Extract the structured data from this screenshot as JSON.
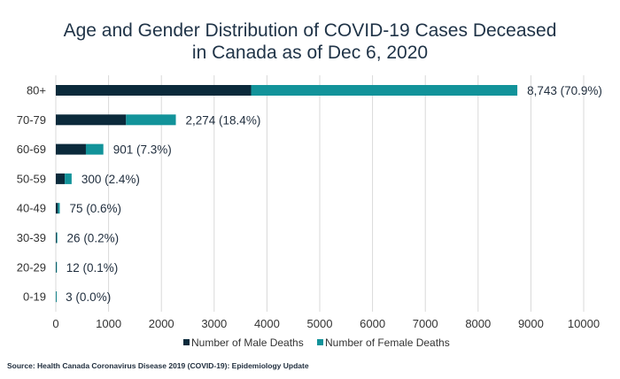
{
  "title_line1": "Age and Gender Distribution of COVID-19 Cases Deceased",
  "title_line2": "in Canada as of Dec 6, 2020",
  "source": "Source: Health Canada Coronavirus Disease 2019 (COVID-19): Epidemiology Update",
  "colors": {
    "male": "#0b2a3b",
    "female": "#12939a",
    "grid": "#d9d9d9"
  },
  "chart_data": {
    "type": "bar",
    "orientation": "horizontal",
    "stacked": true,
    "title": "Age and Gender Distribution of COVID-19 Cases Deceased in Canada as of Dec 6, 2020",
    "categories": [
      "80+",
      "70-79",
      "60-69",
      "50-59",
      "40-49",
      "30-39",
      "20-29",
      "0-19"
    ],
    "series": [
      {
        "name": "Number of Male Deaths",
        "values": [
          3700,
          1330,
          570,
          170,
          40,
          15,
          8,
          2
        ]
      },
      {
        "name": "Number of Female Deaths",
        "values": [
          5043,
          944,
          331,
          130,
          35,
          11,
          4,
          1
        ]
      }
    ],
    "data_labels": [
      "8,743 (70.9%)",
      "2,274 (18.4%)",
      "901 (7.3%)",
      "300 (2.4%)",
      "75 (0.6%)",
      "26 (0.2%)",
      "12 (0.1%)",
      "3 (0.0%)"
    ],
    "totals": [
      8743,
      2274,
      901,
      300,
      75,
      26,
      12,
      3
    ],
    "xlim": [
      0,
      10000
    ],
    "xticks": [
      0,
      1000,
      2000,
      3000,
      4000,
      5000,
      6000,
      7000,
      8000,
      9000,
      10000
    ],
    "grid": true,
    "legend_position": "bottom"
  }
}
